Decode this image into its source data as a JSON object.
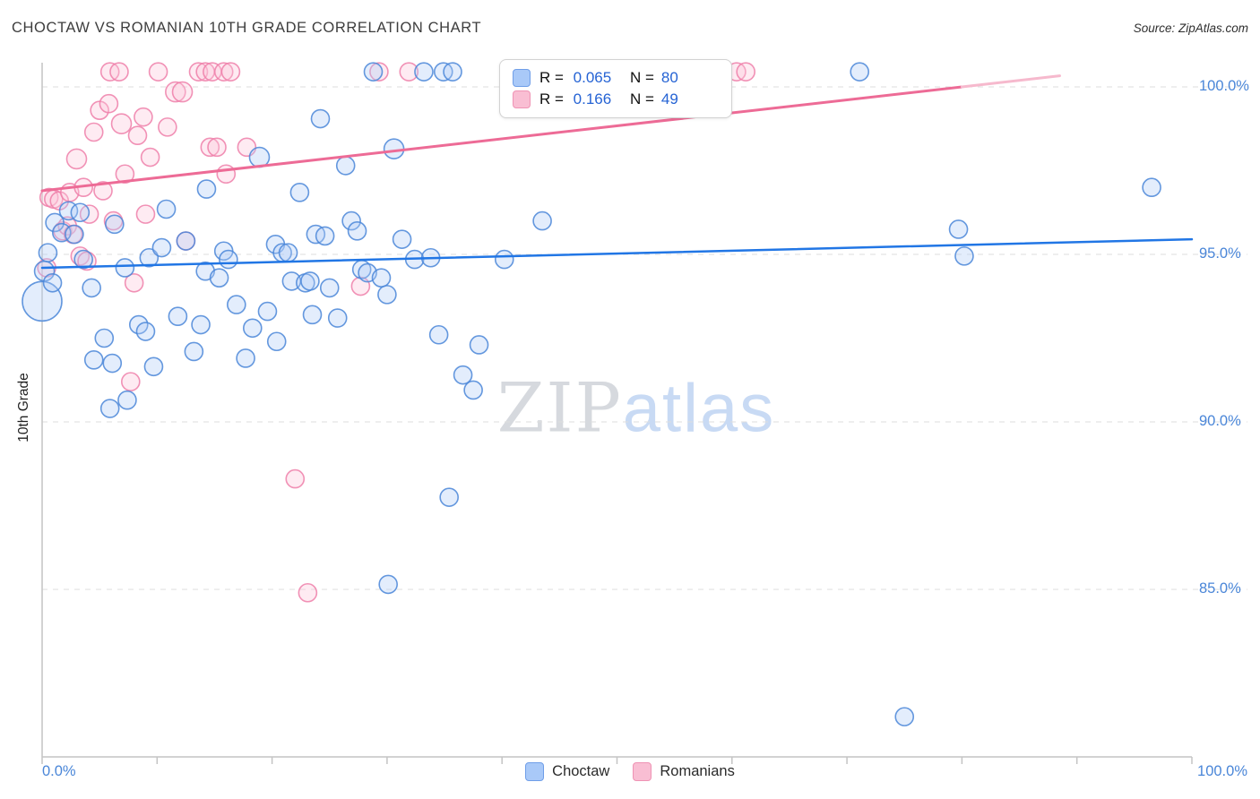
{
  "header": {
    "title": "CHOCTAW VS ROMANIAN 10TH GRADE CORRELATION CHART",
    "source": "Source: ZipAtlas.com"
  },
  "axes": {
    "y_label": "10th Grade",
    "y_tick_labels": [
      "100.0%",
      "95.0%",
      "90.0%",
      "85.0%"
    ],
    "x_min_label": "0.0%",
    "x_max_label": "100.0%"
  },
  "watermark": {
    "zip": "ZIP",
    "atlas": "atlas"
  },
  "legend_box": {
    "rows": [
      {
        "r_label": "R =",
        "r_value": "0.065",
        "n_label": "N =",
        "n_value": "80"
      },
      {
        "r_label": "R =",
        "r_value": "0.166",
        "n_label": "N =",
        "n_value": "49"
      }
    ]
  },
  "bottom_legend": {
    "items": [
      {
        "label": "Choctaw"
      },
      {
        "label": "Romanians"
      }
    ]
  },
  "colors": {
    "blue_stroke": "#4a86d8",
    "blue_fill": "#aecbf5",
    "pink_stroke": "#ee7fa9",
    "pink_fill": "#fbc6da",
    "blue_trend": "#2176e5",
    "pink_trend": "#ed6b96",
    "pink_trend_ext": "#f6b9cd",
    "gridline": "#dedede",
    "axis": "#c4c4c4",
    "tick_label": "#4a86d8"
  },
  "chart_data": {
    "type": "scatter",
    "title": "CHOCTAW VS ROMANIAN 10TH GRADE CORRELATION CHART",
    "xlabel": "",
    "ylabel": "10th Grade",
    "xlim": [
      0,
      100
    ],
    "ylim": [
      80,
      100.5
    ],
    "y_gridlines": [
      100,
      95,
      90,
      85
    ],
    "legend_position": "bottom",
    "series": [
      {
        "name": "Romanians",
        "R": 0.166,
        "N": 49,
        "points": [
          [
            0.4,
            94.6,
            10
          ],
          [
            0.6,
            96.7,
            10
          ],
          [
            1.0,
            96.65,
            10
          ],
          [
            1.5,
            96.6,
            10
          ],
          [
            1.8,
            95.7,
            10
          ],
          [
            2.2,
            95.85,
            10
          ],
          [
            2.4,
            96.85,
            10
          ],
          [
            2.7,
            95.6,
            10
          ],
          [
            3.0,
            97.85,
            11
          ],
          [
            3.3,
            94.95,
            10
          ],
          [
            3.6,
            97.0,
            10
          ],
          [
            3.9,
            94.8,
            10
          ],
          [
            4.1,
            96.2,
            10
          ],
          [
            4.5,
            98.65,
            10
          ],
          [
            5.0,
            99.3,
            10
          ],
          [
            5.3,
            96.9,
            10
          ],
          [
            5.8,
            99.5,
            10
          ],
          [
            5.9,
            100.45,
            10
          ],
          [
            6.2,
            96.0,
            10
          ],
          [
            6.7,
            100.45,
            10
          ],
          [
            6.9,
            98.9,
            11
          ],
          [
            7.2,
            97.4,
            10
          ],
          [
            7.7,
            91.2,
            10
          ],
          [
            8.0,
            94.15,
            10
          ],
          [
            8.3,
            98.55,
            10
          ],
          [
            8.8,
            99.1,
            10
          ],
          [
            9.0,
            96.2,
            10
          ],
          [
            9.4,
            97.9,
            10
          ],
          [
            10.1,
            100.45,
            10
          ],
          [
            10.9,
            98.8,
            10
          ],
          [
            11.6,
            99.85,
            11
          ],
          [
            12.2,
            99.85,
            11
          ],
          [
            12.5,
            95.4,
            10
          ],
          [
            13.6,
            100.45,
            10
          ],
          [
            14.2,
            100.45,
            10
          ],
          [
            14.8,
            100.45,
            10
          ],
          [
            14.6,
            98.2,
            10
          ],
          [
            15.2,
            98.2,
            10
          ],
          [
            15.8,
            100.45,
            10
          ],
          [
            16.4,
            100.45,
            10
          ],
          [
            16.0,
            97.4,
            10
          ],
          [
            17.8,
            98.2,
            10
          ],
          [
            22.0,
            88.3,
            10
          ],
          [
            23.1,
            84.9,
            10
          ],
          [
            27.7,
            94.05,
            10
          ],
          [
            29.3,
            100.45,
            10
          ],
          [
            31.9,
            100.45,
            10
          ],
          [
            60.4,
            100.45,
            10
          ],
          [
            61.2,
            100.45,
            10
          ]
        ]
      },
      {
        "name": "Choctaw",
        "R": 0.065,
        "N": 80,
        "points": [
          [
            0.0,
            93.6,
            22
          ],
          [
            0.2,
            94.5,
            11
          ],
          [
            0.5,
            95.05,
            10
          ],
          [
            0.9,
            94.15,
            10
          ],
          [
            1.1,
            95.95,
            10
          ],
          [
            1.7,
            95.65,
            10
          ],
          [
            2.3,
            96.3,
            10
          ],
          [
            2.8,
            95.6,
            10
          ],
          [
            3.3,
            96.25,
            10
          ],
          [
            3.6,
            94.85,
            10
          ],
          [
            4.3,
            94.0,
            10
          ],
          [
            4.5,
            91.85,
            10
          ],
          [
            5.4,
            92.5,
            10
          ],
          [
            5.9,
            90.4,
            10
          ],
          [
            6.1,
            91.75,
            10
          ],
          [
            6.3,
            95.9,
            10
          ],
          [
            7.2,
            94.6,
            10
          ],
          [
            7.4,
            90.65,
            10
          ],
          [
            8.4,
            92.9,
            10
          ],
          [
            9.0,
            92.7,
            10
          ],
          [
            9.3,
            94.9,
            10
          ],
          [
            9.7,
            91.65,
            10
          ],
          [
            10.4,
            95.2,
            10
          ],
          [
            10.8,
            96.35,
            10
          ],
          [
            11.8,
            93.15,
            10
          ],
          [
            12.5,
            95.4,
            10
          ],
          [
            13.2,
            92.1,
            10
          ],
          [
            13.8,
            92.9,
            10
          ],
          [
            14.2,
            94.5,
            10
          ],
          [
            14.3,
            96.95,
            10
          ],
          [
            15.4,
            94.3,
            10
          ],
          [
            15.8,
            95.1,
            10
          ],
          [
            16.2,
            94.85,
            10
          ],
          [
            16.9,
            93.5,
            10
          ],
          [
            17.7,
            91.9,
            10
          ],
          [
            18.3,
            92.8,
            10
          ],
          [
            18.9,
            97.9,
            11
          ],
          [
            19.6,
            93.3,
            10
          ],
          [
            20.3,
            95.3,
            10
          ],
          [
            20.4,
            92.4,
            10
          ],
          [
            20.9,
            95.05,
            10
          ],
          [
            21.4,
            95.05,
            10
          ],
          [
            21.7,
            94.2,
            10
          ],
          [
            22.4,
            96.85,
            10
          ],
          [
            22.9,
            94.15,
            10
          ],
          [
            23.3,
            94.2,
            10
          ],
          [
            23.5,
            93.2,
            10
          ],
          [
            23.8,
            95.6,
            10
          ],
          [
            24.2,
            99.05,
            10
          ],
          [
            24.6,
            95.55,
            10
          ],
          [
            25.0,
            94.0,
            10
          ],
          [
            25.7,
            93.1,
            10
          ],
          [
            26.4,
            97.65,
            10
          ],
          [
            26.9,
            96.0,
            10
          ],
          [
            27.4,
            95.7,
            10
          ],
          [
            27.8,
            94.55,
            10
          ],
          [
            28.3,
            94.45,
            10
          ],
          [
            28.8,
            100.45,
            10
          ],
          [
            29.5,
            94.3,
            10
          ],
          [
            30.0,
            93.8,
            10
          ],
          [
            30.1,
            85.15,
            10
          ],
          [
            30.6,
            98.15,
            11
          ],
          [
            31.3,
            95.45,
            10
          ],
          [
            32.4,
            94.85,
            10
          ],
          [
            33.2,
            100.45,
            10
          ],
          [
            33.8,
            94.9,
            10
          ],
          [
            34.5,
            92.6,
            10
          ],
          [
            34.9,
            100.45,
            10
          ],
          [
            35.4,
            87.75,
            10
          ],
          [
            35.7,
            100.45,
            10
          ],
          [
            36.6,
            91.4,
            10
          ],
          [
            37.5,
            90.95,
            10
          ],
          [
            38.0,
            92.3,
            10
          ],
          [
            40.2,
            94.85,
            10
          ],
          [
            43.5,
            96.0,
            10
          ],
          [
            71.1,
            100.45,
            10
          ],
          [
            75.0,
            81.2,
            10
          ],
          [
            79.7,
            95.75,
            10
          ],
          [
            80.2,
            94.95,
            10
          ],
          [
            96.5,
            97.0,
            10
          ]
        ]
      }
    ],
    "trend_lines": [
      {
        "series": "Romanians",
        "x0": 0,
        "y0": 96.9,
        "x1": 80,
        "y1": 100.0,
        "style": "solid"
      },
      {
        "series": "Romanians",
        "x0": 80,
        "y0": 100.0,
        "x1": 88.5,
        "y1": 100.33,
        "style": "ext"
      },
      {
        "series": "Choctaw",
        "x0": 0,
        "y0": 94.6,
        "x1": 100,
        "y1": 95.45,
        "style": "solid"
      }
    ]
  }
}
